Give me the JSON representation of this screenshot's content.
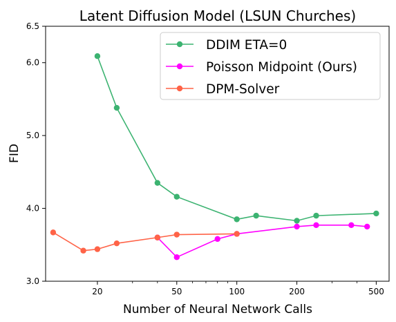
{
  "chart_data": {
    "type": "line",
    "title": "Latent Diffusion Model (LSUN Churches)",
    "xlabel": "Number of Neural Network Calls",
    "ylabel": "FID",
    "xscale": "log",
    "xlim": [
      11,
      580
    ],
    "ylim": [
      3.0,
      6.5
    ],
    "xticks": [
      {
        "value": 20,
        "label": "20"
      },
      {
        "value": 50,
        "label": "50"
      },
      {
        "value": 100,
        "label": "100"
      },
      {
        "value": 200,
        "label": "200"
      },
      {
        "value": 500,
        "label": "500"
      }
    ],
    "yticks": [
      {
        "value": 3.0,
        "label": "3.0"
      },
      {
        "value": 4.0,
        "label": "4.0"
      },
      {
        "value": 5.0,
        "label": "5.0"
      },
      {
        "value": 6.0,
        "label": "6.0"
      },
      {
        "value": 6.5,
        "label": "6.5"
      }
    ],
    "legend_position": "top-right",
    "grid": false,
    "series": [
      {
        "name": "DDIM ETA=0",
        "color": "#3cb371",
        "points": [
          [
            20,
            6.09
          ],
          [
            25,
            5.38
          ],
          [
            40,
            4.35
          ],
          [
            50,
            4.16
          ],
          [
            100,
            3.85
          ],
          [
            125,
            3.9
          ],
          [
            200,
            3.83
          ],
          [
            250,
            3.9
          ],
          [
            500,
            3.93
          ]
        ]
      },
      {
        "name": "Poisson Midpoint (Ours)",
        "color": "#ff00ff",
        "points": [
          [
            40,
            3.6
          ],
          [
            50,
            3.33
          ],
          [
            80,
            3.58
          ],
          [
            100,
            3.65
          ],
          [
            200,
            3.75
          ],
          [
            250,
            3.77
          ],
          [
            375,
            3.77
          ],
          [
            450,
            3.75
          ]
        ]
      },
      {
        "name": "DPM-Solver",
        "color": "#ff6347",
        "points": [
          [
            12,
            3.67
          ],
          [
            17,
            3.42
          ],
          [
            20,
            3.44
          ],
          [
            25,
            3.52
          ],
          [
            40,
            3.6
          ],
          [
            50,
            3.64
          ],
          [
            100,
            3.65
          ]
        ]
      }
    ]
  }
}
